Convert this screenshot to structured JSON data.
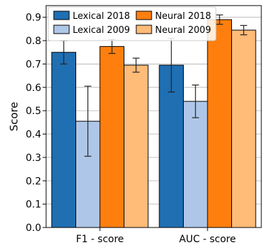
{
  "chart_data": {
    "type": "bar",
    "title": "",
    "xlabel": "",
    "ylabel": "Score",
    "ylim": [
      0.0,
      0.95
    ],
    "yticks": [
      "0.0",
      "0.1",
      "0.2",
      "0.3",
      "0.4",
      "0.5",
      "0.6",
      "0.7",
      "0.8",
      "0.9"
    ],
    "categories": [
      "F1 - score",
      "AUC - score"
    ],
    "grid": "horizontal",
    "legend_position": "top",
    "series": [
      {
        "name": "Lexical 2018",
        "color": "#1f6fb2",
        "values": [
          0.75,
          0.695
        ],
        "errors": [
          0.05,
          0.115
        ]
      },
      {
        "name": "Lexical 2009",
        "color": "#aec7e8",
        "values": [
          0.455,
          0.54
        ],
        "errors": [
          0.15,
          0.07
        ]
      },
      {
        "name": "Neural 2018",
        "color": "#ff7f0e",
        "values": [
          0.775,
          0.89
        ],
        "errors": [
          0.03,
          0.02
        ]
      },
      {
        "name": "Neural 2009",
        "color": "#ffbb78",
        "values": [
          0.695,
          0.845
        ],
        "errors": [
          0.03,
          0.02
        ]
      }
    ]
  }
}
